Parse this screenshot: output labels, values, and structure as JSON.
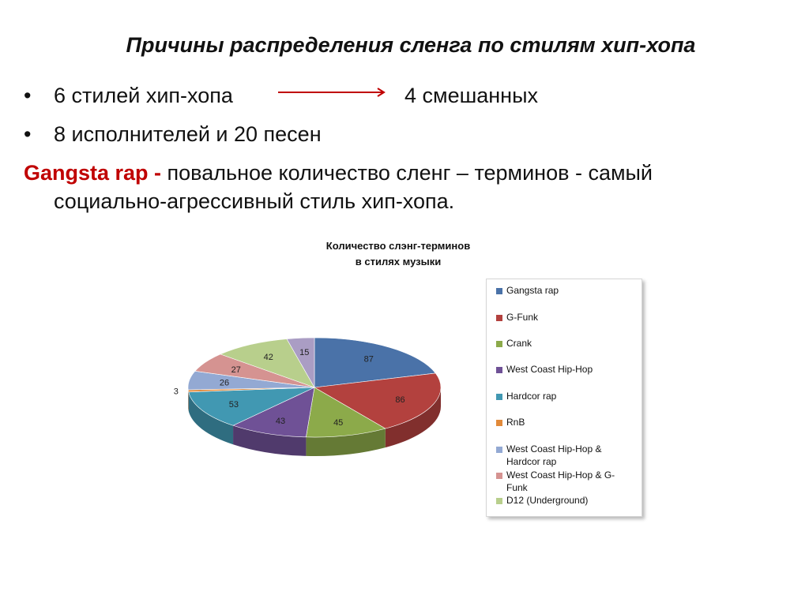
{
  "slide": {
    "title": "Причины распределения сленга по стилям хип-хопа",
    "bullets": [
      {
        "left": "6 стилей хип-хопа",
        "right": "4 смешанных"
      },
      {
        "left": "8 исполнителей и 20 песен"
      }
    ],
    "paragraph": {
      "highlight": "Gangsta rap -",
      "line1_rest": " повальное количество сленг – терминов - самый",
      "line2": "социально-агрессивный стиль хип-хопа."
    },
    "bullet_glyph": "•"
  },
  "chart_data": {
    "type": "pie",
    "title_line1": "Количество  слэнг-терминов",
    "title_line2": "в стилях музыки",
    "categories": [
      "Gangsta rap",
      "G-Funk",
      "Crank",
      " West Coast Hip-Hop",
      "Hardcor rap",
      "RnB",
      "West Coast Hip-Hop & Hardcor rap",
      " West Coast Hip-Hop & G-Funk",
      "D12 (Underground)",
      ""
    ],
    "values": [
      87,
      86,
      45,
      43,
      53,
      3,
      26,
      27,
      42,
      15
    ],
    "colors": [
      "#4a72a8",
      "#b3413e",
      "#8caa4a",
      "#6f5196",
      "#4198b2",
      "#e28a3a",
      "#93a9d3",
      "#d59391",
      "#b8cf8c",
      "#aa9dc4"
    ],
    "legend": [
      {
        "label": "Gangsta rap"
      },
      {
        "label": "G-Funk"
      },
      {
        "label": "Crank"
      },
      {
        "label": " West Coast Hip-Hop"
      },
      {
        "label": "Hardcor rap"
      },
      {
        "label": "RnB"
      },
      {
        "label": "West Coast Hip-Hop & Hardcor rap"
      },
      {
        "label": " West Coast Hip-Hop & G-Funk"
      },
      {
        "label": "D12 (Underground)"
      }
    ],
    "legend_placement": "right",
    "style": "3d-pie"
  },
  "colors": {
    "accent_red": "#c00000",
    "arrow": "#c00000"
  }
}
